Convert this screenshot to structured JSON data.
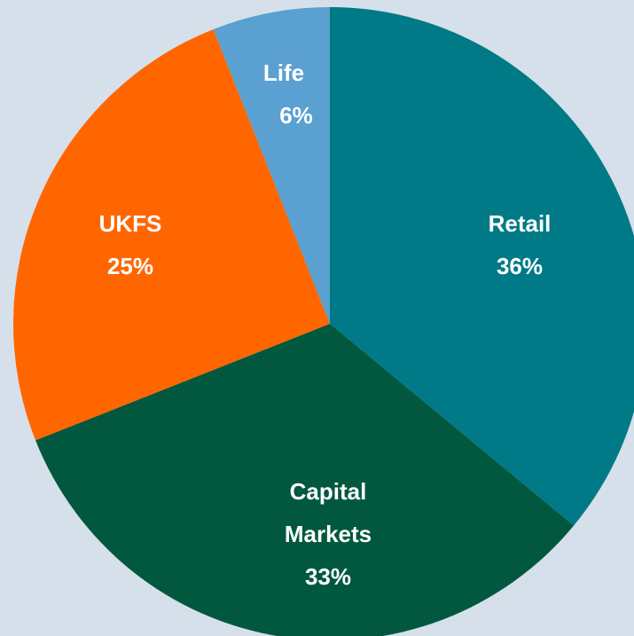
{
  "chart_data": {
    "type": "pie",
    "categories": [
      "Retail",
      "Capital Markets",
      "UKFS",
      "Life"
    ],
    "values": [
      36,
      33,
      25,
      6
    ],
    "value_labels": [
      "36%",
      "33%",
      "25%",
      "6%"
    ],
    "colors": [
      "#007a87",
      "#02583e",
      "#ff6600",
      "#5aa0d0"
    ]
  }
}
